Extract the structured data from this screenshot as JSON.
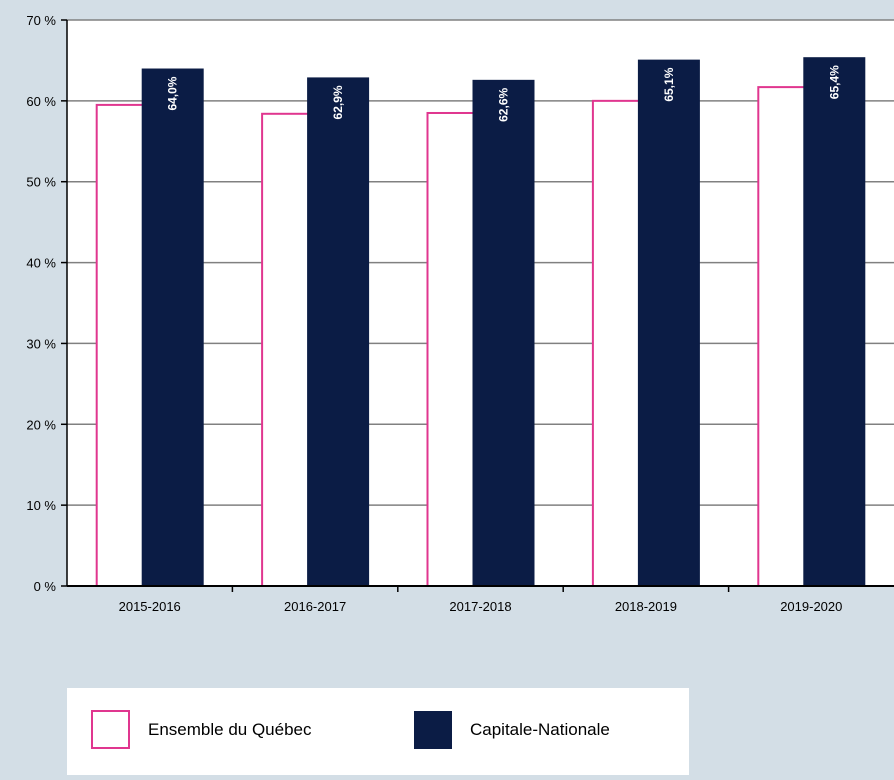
{
  "chart_data": {
    "type": "bar",
    "categories": [
      "2015-2016",
      "2016-2017",
      "2017-2018",
      "2018-2019",
      "2019-2020"
    ],
    "series": [
      {
        "name": "Ensemble du Québec",
        "values": [
          59.5,
          58.4,
          58.5,
          60.0,
          61.7
        ],
        "data_labels": [
          "",
          "",
          "",
          "",
          ""
        ],
        "fill": "#ffffff",
        "stroke": "#e0368f"
      },
      {
        "name": "Capitale-Nationale",
        "values": [
          64.0,
          62.9,
          62.6,
          65.1,
          65.4
        ],
        "data_labels": [
          "64,0%",
          "62,9%",
          "62,6%",
          "65,1%",
          "65,4%"
        ],
        "fill": "#0b1c45",
        "stroke": "#0b1c45"
      }
    ],
    "yticks": [
      {
        "value": 0,
        "label": "0 %"
      },
      {
        "value": 10,
        "label": "10 %"
      },
      {
        "value": 20,
        "label": "20 %"
      },
      {
        "value": 30,
        "label": "30 %"
      },
      {
        "value": 40,
        "label": "40 %"
      },
      {
        "value": 50,
        "label": "50 %"
      },
      {
        "value": 60,
        "label": "60 %"
      },
      {
        "value": 70,
        "label": "70 %"
      }
    ],
    "ylim": [
      0,
      70
    ],
    "grid": true,
    "legend_position": "bottom-left",
    "title": "",
    "xlabel": "",
    "ylabel": ""
  },
  "colors": {
    "background": "#d3dee6",
    "plot_area": "#ffffff",
    "grid": "#808080",
    "axis": "#000000"
  }
}
